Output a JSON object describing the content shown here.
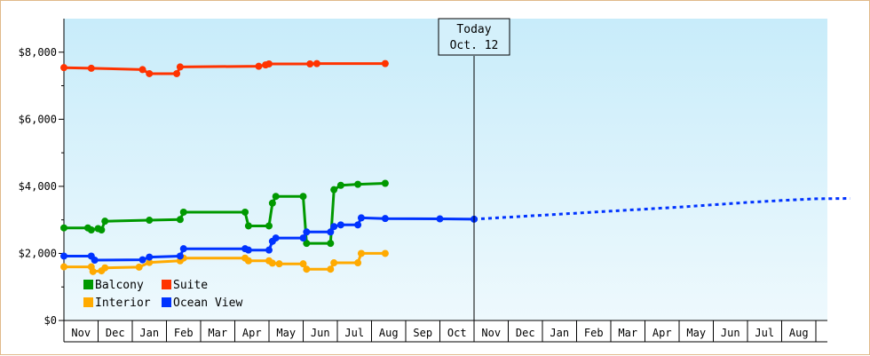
{
  "chart_data": {
    "type": "line",
    "title": "",
    "xlabel": "",
    "ylabel": "",
    "ylim": [
      0,
      9000
    ],
    "y_ticks": [
      {
        "value": 0,
        "label": "$0"
      },
      {
        "value": 2000,
        "label": "$2,000"
      },
      {
        "value": 4000,
        "label": "$4,000"
      },
      {
        "value": 6000,
        "label": "$6,000"
      },
      {
        "value": 8000,
        "label": "$8,000"
      }
    ],
    "x_tick_labels": [
      "Nov",
      "Dec",
      "Jan",
      "Feb",
      "Mar",
      "Apr",
      "May",
      "Jun",
      "Jul",
      "Aug",
      "Sep",
      "Oct",
      "Nov",
      "Dec",
      "Jan",
      "Feb",
      "Mar",
      "Apr",
      "May",
      "Jun",
      "Jul",
      "Aug"
    ],
    "today": {
      "label_line1": "Today",
      "label_line2": "Oct. 12",
      "x": 11.5
    },
    "legend": [
      {
        "label": "Balcony",
        "color": "#009900"
      },
      {
        "label": "Suite",
        "color": "#ff3300"
      },
      {
        "label": "Interior",
        "color": "#ffaa00"
      },
      {
        "label": "Ocean View",
        "color": "#0033ff"
      }
    ],
    "series": [
      {
        "name": "Suite",
        "color": "#ff3300",
        "points": [
          [
            -0.5,
            7540
          ],
          [
            0.3,
            7520
          ],
          [
            1.8,
            7480
          ],
          [
            2.0,
            7360
          ],
          [
            2.8,
            7360
          ],
          [
            2.9,
            7560
          ],
          [
            5.2,
            7580
          ],
          [
            5.4,
            7620
          ],
          [
            5.5,
            7650
          ],
          [
            6.7,
            7650
          ],
          [
            6.9,
            7660
          ],
          [
            8.9,
            7660
          ]
        ]
      },
      {
        "name": "Balcony",
        "color": "#009900",
        "points": [
          [
            -0.5,
            2760
          ],
          [
            0.2,
            2760
          ],
          [
            0.3,
            2700
          ],
          [
            0.5,
            2740
          ],
          [
            0.6,
            2700
          ],
          [
            0.7,
            2960
          ],
          [
            2.0,
            2990
          ],
          [
            2.9,
            3010
          ],
          [
            3.0,
            3230
          ],
          [
            4.8,
            3230
          ],
          [
            4.9,
            2820
          ],
          [
            5.5,
            2820
          ],
          [
            5.6,
            3500
          ],
          [
            5.7,
            3700
          ],
          [
            6.5,
            3700
          ],
          [
            6.6,
            2300
          ],
          [
            7.3,
            2300
          ],
          [
            7.4,
            3900
          ],
          [
            7.6,
            4030
          ],
          [
            8.1,
            4060
          ],
          [
            8.9,
            4090
          ]
        ]
      },
      {
        "name": "Interior",
        "color": "#ffaa00",
        "points": [
          [
            -0.5,
            1600
          ],
          [
            0.3,
            1600
          ],
          [
            0.35,
            1460
          ],
          [
            0.6,
            1480
          ],
          [
            0.7,
            1570
          ],
          [
            1.7,
            1590
          ],
          [
            2.0,
            1730
          ],
          [
            2.9,
            1780
          ],
          [
            3.0,
            1860
          ],
          [
            4.8,
            1860
          ],
          [
            4.9,
            1780
          ],
          [
            5.5,
            1780
          ],
          [
            5.6,
            1710
          ],
          [
            5.8,
            1690
          ],
          [
            6.5,
            1690
          ],
          [
            6.6,
            1530
          ],
          [
            7.3,
            1530
          ],
          [
            7.4,
            1720
          ],
          [
            8.1,
            1720
          ],
          [
            8.2,
            2000
          ],
          [
            8.9,
            2000
          ]
        ]
      },
      {
        "name": "Ocean View",
        "color": "#0033ff",
        "points": [
          [
            -0.5,
            1920
          ],
          [
            0.3,
            1920
          ],
          [
            0.4,
            1800
          ],
          [
            1.8,
            1810
          ],
          [
            2.0,
            1890
          ],
          [
            2.9,
            1920
          ],
          [
            3.0,
            2140
          ],
          [
            4.8,
            2140
          ],
          [
            4.9,
            2100
          ],
          [
            5.5,
            2100
          ],
          [
            5.6,
            2360
          ],
          [
            5.7,
            2460
          ],
          [
            6.5,
            2460
          ],
          [
            6.6,
            2640
          ],
          [
            7.3,
            2640
          ],
          [
            7.4,
            2800
          ],
          [
            7.6,
            2850
          ],
          [
            8.1,
            2850
          ],
          [
            8.2,
            3060
          ],
          [
            8.9,
            3040
          ],
          [
            10.5,
            3030
          ],
          [
            11.5,
            3020
          ]
        ]
      }
    ],
    "projection": {
      "name": "Ocean View",
      "color": "#0033ff",
      "points": [
        [
          11.5,
          3020
        ],
        [
          13.5,
          3140
        ],
        [
          15.5,
          3260
        ],
        [
          17.5,
          3380
        ],
        [
          19.5,
          3520
        ],
        [
          20.5,
          3580
        ],
        [
          21.5,
          3630
        ],
        [
          22.5,
          3640
        ]
      ]
    }
  }
}
